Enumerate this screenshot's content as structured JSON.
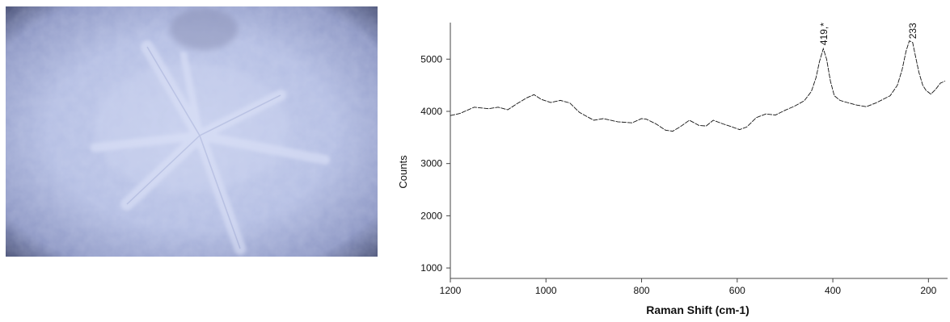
{
  "photo": {
    "name": "raman-microscope-image",
    "colors": {
      "base": "#b9c4e6",
      "vignette": "#4a5278"
    }
  },
  "chart_data": {
    "type": "line",
    "xlabel": "Raman Shift (cm-1)",
    "ylabel": "Counts",
    "xlim": [
      1200,
      160
    ],
    "ylim": [
      800,
      5700
    ],
    "x_reversed": true,
    "xticks": [
      1200,
      1000,
      800,
      600,
      400,
      200
    ],
    "yticks": [
      1000,
      2000,
      3000,
      4000,
      5000
    ],
    "grid": false,
    "series": [
      {
        "x": [
          1210,
          1180,
          1150,
          1120,
          1100,
          1080,
          1060,
          1040,
          1025,
          1010,
          990,
          970,
          950,
          930,
          900,
          880,
          850,
          820,
          800,
          790,
          770,
          750,
          735,
          720,
          700,
          680,
          665,
          650,
          630,
          610,
          595,
          580,
          560,
          540,
          520,
          500,
          480,
          460,
          445,
          435,
          428,
          420,
          413,
          405,
          397,
          385,
          370,
          350,
          330,
          310,
          295,
          280,
          265,
          255,
          247,
          240,
          233,
          227,
          220,
          212,
          205,
          195,
          185,
          175,
          165
        ],
        "y": [
          3920,
          3960,
          4080,
          4050,
          4080,
          4030,
          4150,
          4260,
          4320,
          4230,
          4170,
          4210,
          4160,
          3980,
          3830,
          3860,
          3800,
          3780,
          3860,
          3850,
          3760,
          3640,
          3620,
          3700,
          3830,
          3730,
          3720,
          3830,
          3760,
          3700,
          3650,
          3700,
          3880,
          3950,
          3930,
          4020,
          4100,
          4200,
          4380,
          4650,
          4950,
          5200,
          5000,
          4580,
          4300,
          4210,
          4170,
          4120,
          4090,
          4160,
          4230,
          4300,
          4500,
          4800,
          5150,
          5350,
          5320,
          5050,
          4750,
          4500,
          4400,
          4330,
          4420,
          4540,
          4580
        ]
      }
    ],
    "annotations": [
      {
        "x": 419,
        "y": 5220,
        "label": "419,*"
      },
      {
        "x": 233,
        "y": 5340,
        "label": "233"
      }
    ]
  }
}
